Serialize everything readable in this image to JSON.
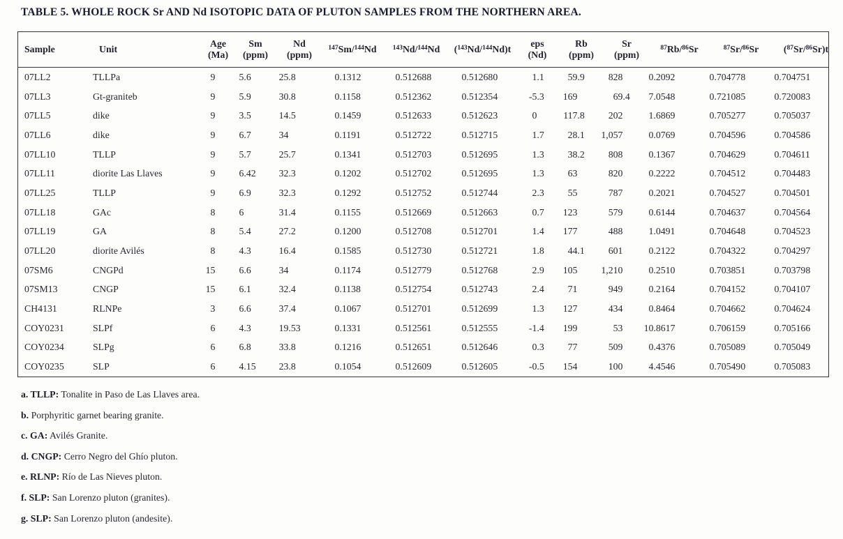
{
  "title": "TABLE 5. WHOLE ROCK Sr AND Nd ISOTOPIC DATA OF PLUTON SAMPLES FROM THE NORTHERN AREA.",
  "table": {
    "columns": [
      {
        "key": "sample",
        "lines": [
          [
            {
              "t": "Sample"
            }
          ]
        ]
      },
      {
        "key": "unit",
        "lines": [
          [
            {
              "t": "Unit"
            }
          ]
        ]
      },
      {
        "key": "age-ma",
        "lines": [
          [
            {
              "t": "Age"
            }
          ],
          [
            {
              "t": "(Ma)"
            }
          ]
        ]
      },
      {
        "key": "sm-ppm",
        "lines": [
          [
            {
              "t": "Sm"
            }
          ],
          [
            {
              "t": "(ppm)"
            }
          ]
        ]
      },
      {
        "key": "nd-ppm",
        "lines": [
          [
            {
              "t": "Nd"
            }
          ],
          [
            {
              "t": "(ppm)"
            }
          ]
        ]
      },
      {
        "key": "sm147-nd144",
        "lines": [
          [
            {
              "sup": "147"
            },
            {
              "t": "Sm/"
            },
            {
              "sup": "144"
            },
            {
              "t": "Nd"
            }
          ]
        ]
      },
      {
        "key": "nd143-nd144",
        "lines": [
          [
            {
              "sup": "143"
            },
            {
              "t": "Nd/"
            },
            {
              "sup": "144"
            },
            {
              "t": "Nd"
            }
          ]
        ]
      },
      {
        "key": "nd143-nd144-t",
        "lines": [
          [
            {
              "t": "("
            },
            {
              "sup": "143"
            },
            {
              "t": "Nd/"
            },
            {
              "sup": "144"
            },
            {
              "t": "Nd)t"
            }
          ]
        ]
      },
      {
        "key": "eps-nd",
        "lines": [
          [
            {
              "t": "eps"
            }
          ],
          [
            {
              "t": "(Nd)"
            }
          ]
        ]
      },
      {
        "key": "rb-ppm",
        "lines": [
          [
            {
              "t": "Rb"
            }
          ],
          [
            {
              "t": "(ppm)"
            }
          ]
        ]
      },
      {
        "key": "sr-ppm",
        "lines": [
          [
            {
              "t": "Sr"
            }
          ],
          [
            {
              "t": "(ppm)"
            }
          ]
        ]
      },
      {
        "key": "rb87-sr86",
        "lines": [
          [
            {
              "sup": "87"
            },
            {
              "t": "Rb/"
            },
            {
              "sup": "86"
            },
            {
              "t": "Sr"
            }
          ]
        ]
      },
      {
        "key": "sr87-sr86",
        "lines": [
          [
            {
              "sup": "87"
            },
            {
              "t": "Sr/"
            },
            {
              "sup": "86"
            },
            {
              "t": "Sr"
            }
          ]
        ]
      },
      {
        "key": "sr87-sr86-t",
        "lines": [
          [
            {
              "t": "("
            },
            {
              "sup": "87"
            },
            {
              "t": "Sr/"
            },
            {
              "sup": "86"
            },
            {
              "t": "Sr)t"
            }
          ]
        ]
      }
    ],
    "rows": [
      [
        "07LL2",
        "TLLPa",
        "9",
        "5.6",
        "25.8",
        "0.1312",
        "0.512688",
        "0.512680",
        "1.1",
        "59.9",
        "828",
        "0.2092",
        "0.704778",
        "0.704751"
      ],
      [
        "07LL3",
        "Gt-graniteb",
        "9",
        "5.9",
        "30.8",
        "0.1158",
        "0.512362",
        "0.512354",
        "-5.3",
        "169",
        "69.4",
        "7.0548",
        "0.721085",
        "0.720083"
      ],
      [
        "07LL5",
        "dike",
        "9",
        "3.5",
        "14.5",
        "0.1459",
        "0.512633",
        "0.512623",
        "0",
        "117.8",
        "202",
        "1.6869",
        "0.705277",
        "0.705037"
      ],
      [
        "07LL6",
        "dike",
        "9",
        "6.7",
        "34",
        "0.1191",
        "0.512722",
        "0.512715",
        "1.7",
        "28.1",
        "1,057",
        "0.0769",
        "0.704596",
        "0.704586"
      ],
      [
        "07LL10",
        "TLLP",
        "9",
        "5.7",
        "25.7",
        "0.1341",
        "0.512703",
        "0.512695",
        "1.3",
        "38.2",
        "808",
        "0.1367",
        "0.704629",
        "0.704611"
      ],
      [
        "07LL11",
        "diorite Las Llaves",
        "9",
        "6.42",
        "32.3",
        "0.1202",
        "0.512702",
        "0.512695",
        "1.3",
        "63",
        "820",
        "0.2222",
        "0.704512",
        "0.704483"
      ],
      [
        "07LL25",
        "TLLP",
        "9",
        "6.9",
        "32.3",
        "0.1292",
        "0.512752",
        "0.512744",
        "2.3",
        "55",
        "787",
        "0.2021",
        "0.704527",
        "0.704501"
      ],
      [
        "07LL18",
        "GAc",
        "8",
        "6",
        "31.4",
        "0.1155",
        "0.512669",
        "0.512663",
        "0.7",
        "123",
        "579",
        "0.6144",
        "0.704637",
        "0.704564"
      ],
      [
        "07LL19",
        "GA",
        "8",
        "5.4",
        "27.2",
        "0.1200",
        "0.512708",
        "0.512701",
        "1.4",
        "177",
        "488",
        "1.0491",
        "0.704648",
        "0.704523"
      ],
      [
        "07LL20",
        "diorite Avilés",
        "8",
        "4.3",
        "16.4",
        "0.1585",
        "0.512730",
        "0.512721",
        "1.8",
        "44.1",
        "601",
        "0.2122",
        "0.704322",
        "0.704297"
      ],
      [
        "07SM6",
        "CNGPd",
        "15",
        "6.6",
        "34",
        "0.1174",
        "0.512779",
        "0.512768",
        "2.9",
        "105",
        "1,210",
        "0.2510",
        "0.703851",
        "0.703798"
      ],
      [
        "07SM13",
        "CNGP",
        "15",
        "6.1",
        "32.4",
        "0.1138",
        "0.512754",
        "0.512743",
        "2.4",
        "71",
        "949",
        "0.2164",
        "0.704152",
        "0.704107"
      ],
      [
        "CH4131",
        "RLNPe",
        "3",
        "6.6",
        "37.4",
        "0.1067",
        "0.512701",
        "0.512699",
        "1.3",
        "127",
        "434",
        "0.8464",
        "0.704662",
        "0.704624"
      ],
      [
        "COY0231",
        "SLPf",
        "6",
        "4.3",
        "19.53",
        "0.1331",
        "0.512561",
        "0.512555",
        "-1.4",
        "199",
        "53",
        "10.8617",
        "0.706159",
        "0.705166"
      ],
      [
        "COY0234",
        "SLPg",
        "6",
        "6.8",
        "33.8",
        "0.1216",
        "0.512651",
        "0.512646",
        "0.3",
        "77",
        "509",
        "0.4376",
        "0.705089",
        "0.705049"
      ],
      [
        "COY0235",
        "SLP",
        "6",
        "4.15",
        "23.8",
        "0.1054",
        "0.512609",
        "0.512605",
        "-0.5",
        "154",
        "100",
        "4.4546",
        "0.705490",
        "0.705083"
      ]
    ]
  },
  "footnotes": [
    {
      "bold": "a. TLLP:",
      "text": " Tonalite in Paso de Las Llaves area."
    },
    {
      "bold": "b.",
      "text": " Porphyritic garnet bearing granite."
    },
    {
      "bold": "c. GA:",
      "text": " Avilés Granite."
    },
    {
      "bold": "d. CNGP:",
      "text": " Cerro Negro del Ghío pluton."
    },
    {
      "bold": "e. RLNP:",
      "text": " Río de Las Nieves pluton."
    },
    {
      "bold": "f. SLP:",
      "text": " San Lorenzo pluton (granites)."
    },
    {
      "bold": "g. SLP:",
      "text": " San Lorenzo pluton (andesite)."
    }
  ]
}
